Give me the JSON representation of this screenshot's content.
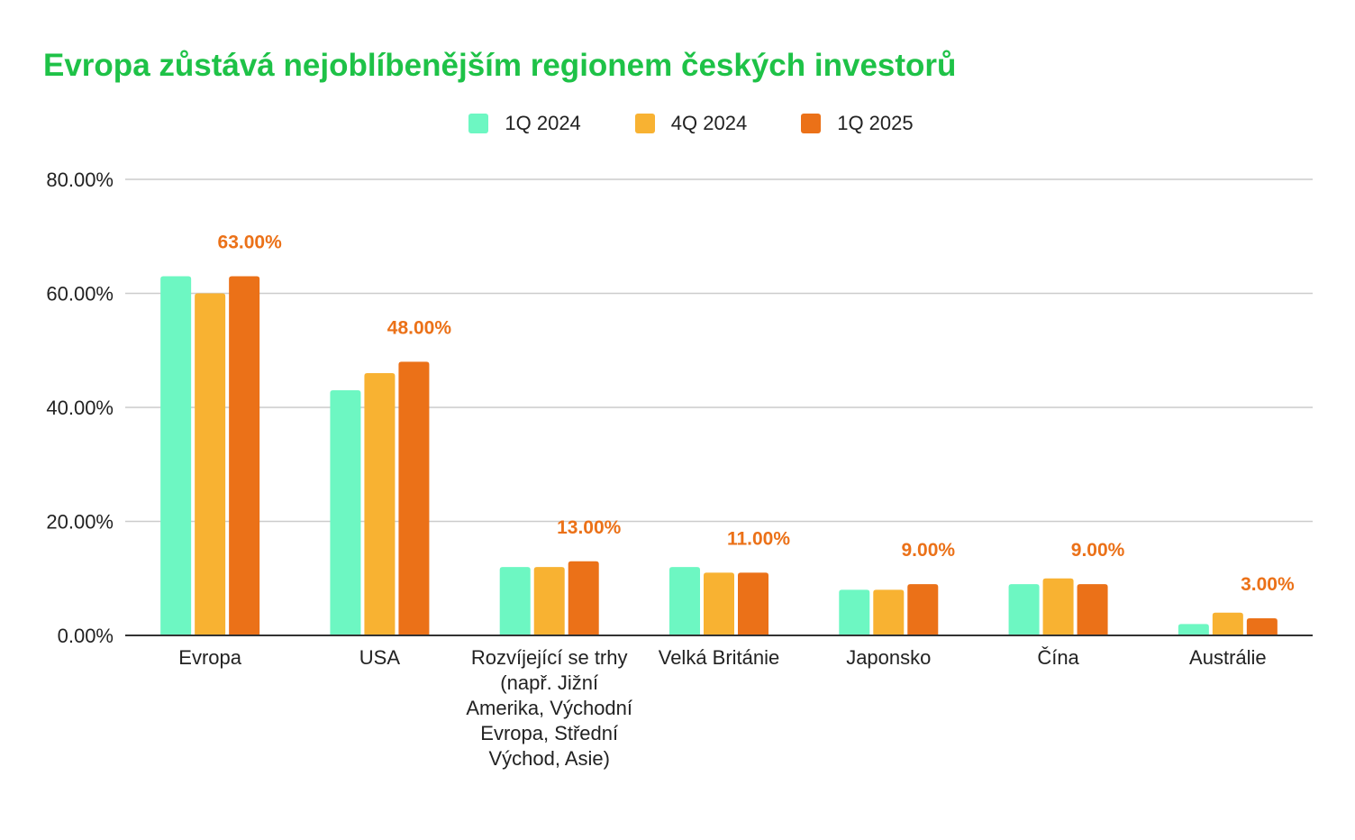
{
  "chart_data": {
    "type": "bar",
    "title": "Evropa zůstává nejoblíbenějším regionem českých investorů",
    "title_color": "#1ec247",
    "categories": [
      "Evropa",
      "USA",
      "Rozvíjející se trhy (např. Jižní Amerika, Východní Evropa, Střední Východ, Asie)",
      "Velká Británie",
      "Japonsko",
      "Čína",
      "Austrálie"
    ],
    "series": [
      {
        "name": "1Q 2024",
        "color": "#6df7c2",
        "values": [
          63,
          43,
          12,
          12,
          8,
          9,
          2
        ]
      },
      {
        "name": "4Q 2024",
        "color": "#f8b232",
        "values": [
          60,
          46,
          12,
          11,
          8,
          10,
          4
        ]
      },
      {
        "name": "1Q 2025",
        "color": "#eb7118",
        "values": [
          63,
          48,
          13,
          11,
          9,
          9,
          3
        ]
      }
    ],
    "data_labels": {
      "series": "1Q 2025",
      "color": "#eb7118",
      "texts": [
        "63.00%",
        "48.00%",
        "13.00%",
        "11.00%",
        "9.00%",
        "9.00%",
        "3.00%"
      ]
    },
    "yticks": [
      "0.00%",
      "20.00%",
      "40.00%",
      "60.00%",
      "80.00%"
    ],
    "ytick_values": [
      0,
      20,
      40,
      60,
      80
    ],
    "ylim": [
      0,
      80
    ],
    "xlabel": "",
    "ylabel": "",
    "grid": true,
    "legend_position": "top"
  }
}
